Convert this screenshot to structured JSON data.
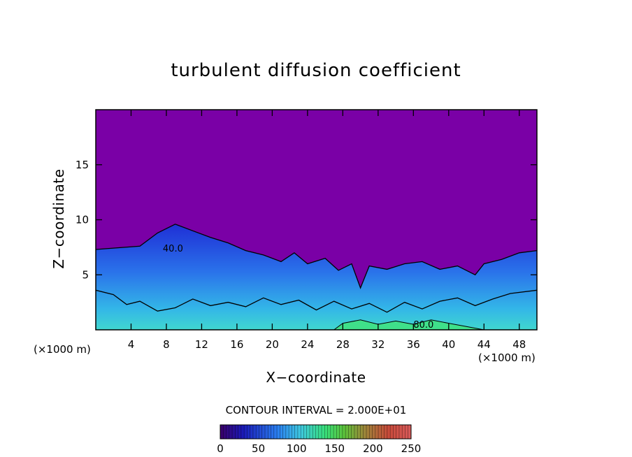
{
  "chart_data": {
    "type": "heatmap",
    "title": "turbulent diffusion coefficient",
    "xlabel": "X−coordinate",
    "ylabel": "Z−coordinate",
    "x_unit": "(×1000 m)",
    "xlim": [
      0,
      50
    ],
    "ylim": [
      0,
      20
    ],
    "x_ticks": [
      4,
      8,
      12,
      16,
      20,
      24,
      28,
      32,
      36,
      40,
      44,
      48
    ],
    "y_ticks": [
      5,
      10,
      15
    ],
    "contour_interval": "CONTOUR INTERVAL = 2.000E+01",
    "contour_labels": [
      {
        "text": "40.0",
        "x": 7.6,
        "z": 7.1
      },
      {
        "text": "80.0",
        "x": 36.0,
        "z": 0.2
      }
    ],
    "colorbar": {
      "min": 0,
      "max": 250,
      "ticks": [
        0,
        50,
        100,
        150,
        200,
        250
      ]
    },
    "background_value": 0,
    "turbulent_layer_top": [
      {
        "x": 0,
        "z": 7.3
      },
      {
        "x": 5,
        "z": 7.6
      },
      {
        "x": 7,
        "z": 8.8
      },
      {
        "x": 9,
        "z": 9.6
      },
      {
        "x": 11,
        "z": 9.0
      },
      {
        "x": 13,
        "z": 8.4
      },
      {
        "x": 15,
        "z": 7.9
      },
      {
        "x": 17,
        "z": 7.2
      },
      {
        "x": 19,
        "z": 6.8
      },
      {
        "x": 21,
        "z": 6.2
      },
      {
        "x": 22.5,
        "z": 7.0
      },
      {
        "x": 24,
        "z": 6.0
      },
      {
        "x": 26,
        "z": 6.5
      },
      {
        "x": 27.5,
        "z": 5.4
      },
      {
        "x": 29,
        "z": 6.0
      },
      {
        "x": 30,
        "z": 3.8
      },
      {
        "x": 31,
        "z": 5.8
      },
      {
        "x": 33,
        "z": 5.5
      },
      {
        "x": 35,
        "z": 6.0
      },
      {
        "x": 37,
        "z": 6.2
      },
      {
        "x": 39,
        "z": 5.5
      },
      {
        "x": 41,
        "z": 5.8
      },
      {
        "x": 43,
        "z": 5.0
      },
      {
        "x": 44,
        "z": 6.0
      },
      {
        "x": 46,
        "z": 6.4
      },
      {
        "x": 48,
        "z": 7.0
      },
      {
        "x": 50,
        "z": 7.2
      }
    ],
    "contour_40": [
      {
        "x": 0,
        "z": 3.6
      },
      {
        "x": 2,
        "z": 3.2
      },
      {
        "x": 3.5,
        "z": 2.3
      },
      {
        "x": 5,
        "z": 2.6
      },
      {
        "x": 7,
        "z": 1.7
      },
      {
        "x": 9,
        "z": 2.0
      },
      {
        "x": 11,
        "z": 2.8
      },
      {
        "x": 13,
        "z": 2.2
      },
      {
        "x": 15,
        "z": 2.5
      },
      {
        "x": 17,
        "z": 2.1
      },
      {
        "x": 19,
        "z": 2.9
      },
      {
        "x": 21,
        "z": 2.3
      },
      {
        "x": 23,
        "z": 2.7
      },
      {
        "x": 25,
        "z": 1.8
      },
      {
        "x": 27,
        "z": 2.6
      },
      {
        "x": 29,
        "z": 1.9
      },
      {
        "x": 31,
        "z": 2.4
      },
      {
        "x": 33,
        "z": 1.6
      },
      {
        "x": 35,
        "z": 2.5
      },
      {
        "x": 37,
        "z": 1.9
      },
      {
        "x": 39,
        "z": 2.6
      },
      {
        "x": 41,
        "z": 2.9
      },
      {
        "x": 43,
        "z": 2.2
      },
      {
        "x": 45,
        "z": 2.8
      },
      {
        "x": 47,
        "z": 3.3
      },
      {
        "x": 50,
        "z": 3.6
      }
    ],
    "high_zone": [
      {
        "x": 27,
        "z": 0
      },
      {
        "x": 28,
        "z": 0.6
      },
      {
        "x": 30,
        "z": 0.9
      },
      {
        "x": 32,
        "z": 0.5
      },
      {
        "x": 34,
        "z": 0.8
      },
      {
        "x": 36,
        "z": 0.5
      },
      {
        "x": 38,
        "z": 0.9
      },
      {
        "x": 40,
        "z": 0.6
      },
      {
        "x": 42,
        "z": 0.3
      },
      {
        "x": 44,
        "z": 0
      }
    ]
  }
}
